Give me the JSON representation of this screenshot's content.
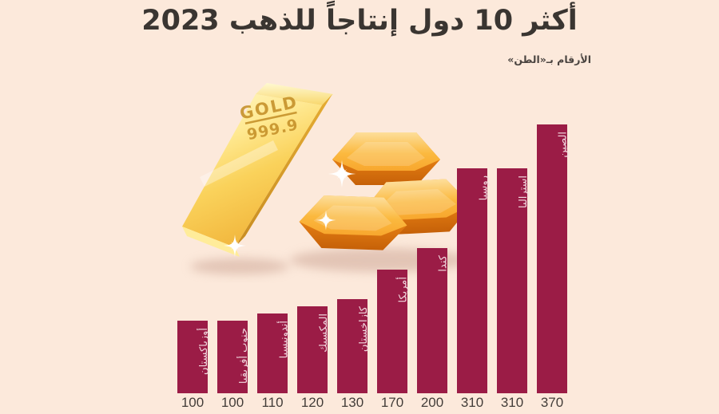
{
  "page": {
    "title": "أكثر 10 دول إنتاجاً للذهب 2023",
    "subtitle": "الأرقام بـ«الطن»",
    "background_color": "#FCE9DB"
  },
  "chart_data": {
    "type": "bar",
    "title": "أكثر 10 دول إنتاجاً للذهب 2023",
    "subtitle": "الأرقام بـ«الطن»",
    "unit": "الطن",
    "orientation": "vertical",
    "grid": false,
    "legend": false,
    "ylim": [
      0,
      400
    ],
    "categories": [
      "أوزباكستان",
      "جنوب أفريقيا",
      "أندونيسيا",
      "المكسيك",
      "كازاخستان",
      "أمريكا",
      "كندا",
      "روسيا",
      "استراليا",
      "الصين"
    ],
    "values": [
      100,
      100,
      110,
      120,
      130,
      170,
      200,
      310,
      310,
      370
    ],
    "value_labels": [
      "100",
      "100",
      "110",
      "120",
      "130",
      "170",
      "200",
      "310",
      "310",
      "370"
    ],
    "category_label_position": "inside-bar-top-vertical",
    "value_label_position": "below-bar",
    "bar_color": "#9B1C46",
    "bar_label_color": "#F2D9DF",
    "value_label_color": "#433D39"
  },
  "illustration": {
    "name": "gold-bars-illustration",
    "stamp_line1": "GOLD",
    "stamp_line2": "999.9",
    "gold_color": "#FAD25B",
    "ingot_color": "#E8821A"
  }
}
